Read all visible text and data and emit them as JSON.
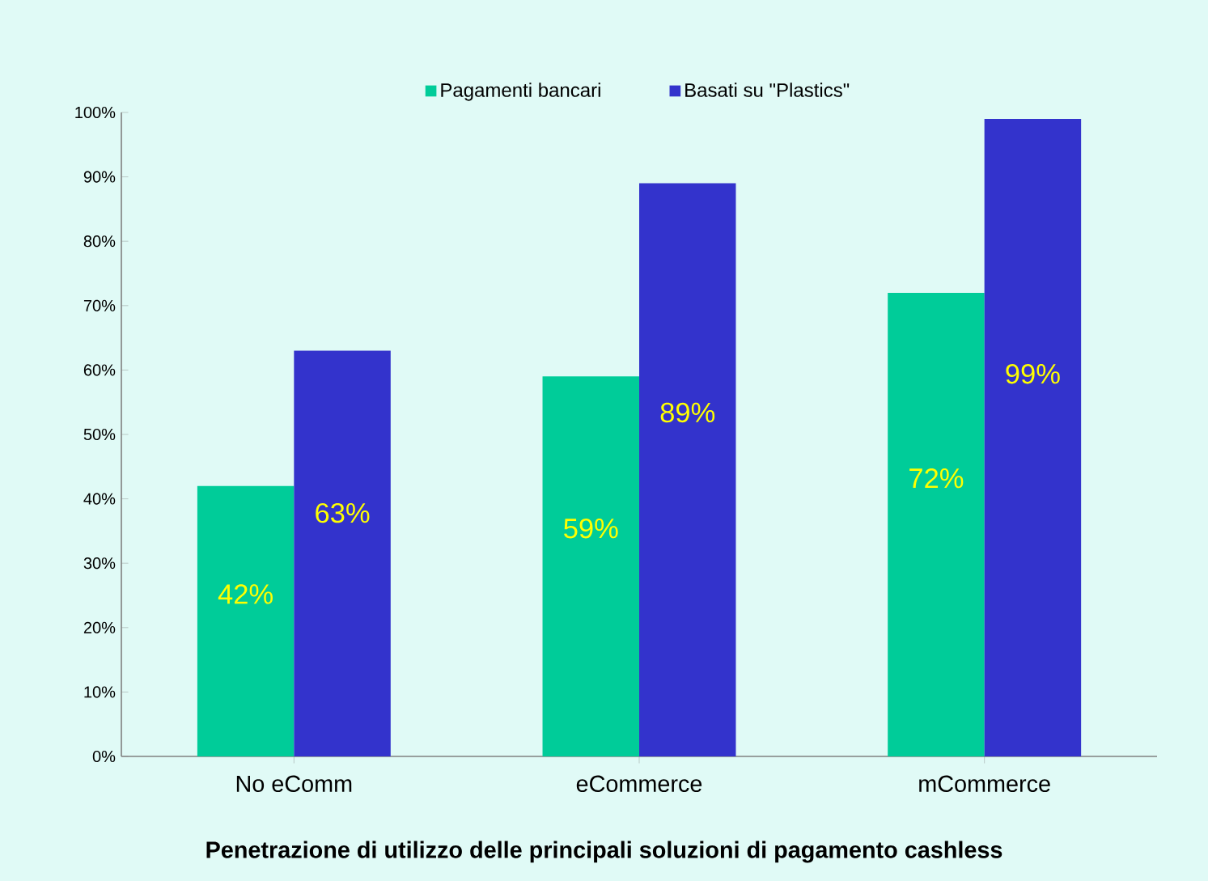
{
  "chart_data": {
    "type": "bar",
    "title": "Penetrazione di utilizzo delle principali soluzioni di pagamento cashless",
    "categories": [
      "No eComm",
      "eCommerce",
      "mCommerce"
    ],
    "series": [
      {
        "name": "Pagamenti bancari",
        "color": "#00cc99",
        "values": [
          42,
          59,
          72
        ],
        "value_labels": [
          "42%",
          "59%",
          "72%"
        ]
      },
      {
        "name": "Basati su \"Plastics\"",
        "color": "#3333cc",
        "values": [
          63,
          89,
          99
        ],
        "value_labels": [
          "63%",
          "89%",
          "99%"
        ]
      }
    ],
    "ylim": [
      0,
      100
    ],
    "yticks": [
      {
        "value": 0,
        "label": "0%"
      },
      {
        "value": 10,
        "label": "10%"
      },
      {
        "value": 20,
        "label": "20%"
      },
      {
        "value": 30,
        "label": "30%"
      },
      {
        "value": 40,
        "label": "40%"
      },
      {
        "value": 50,
        "label": "50%"
      },
      {
        "value": 60,
        "label": "60%"
      },
      {
        "value": 70,
        "label": "70%"
      },
      {
        "value": 80,
        "label": "80%"
      },
      {
        "value": 90,
        "label": "90%"
      },
      {
        "value": 100,
        "label": "100%"
      }
    ],
    "legend": "top"
  }
}
